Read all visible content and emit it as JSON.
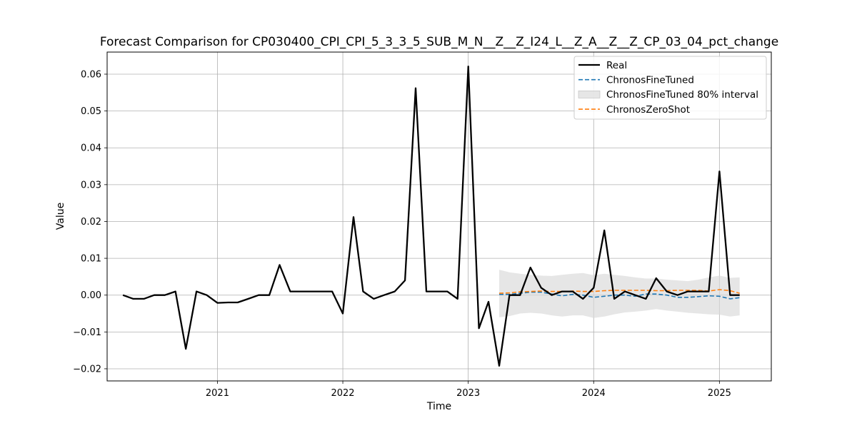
{
  "chart_data": {
    "type": "line",
    "title": "Forecast Comparison for CP030400_CPI_CPI_5_3_3_5_SUB_M_N__Z__Z_I24_L__Z_A__Z__Z_CP_03_04_pct_change",
    "xlabel": "Time",
    "ylabel": "Value",
    "xlim": [
      "2020-02-15",
      "2025-06-01"
    ],
    "ylim": [
      -0.0233,
      0.066
    ],
    "x_ticks": [
      "2021-01-01",
      "2022-01-01",
      "2023-01-01",
      "2024-01-01",
      "2025-01-01"
    ],
    "x_tick_labels": [
      "2021",
      "2022",
      "2023",
      "2024",
      "2025"
    ],
    "y_ticks": [
      -0.02,
      -0.01,
      0.0,
      0.01,
      0.02,
      0.03,
      0.04,
      0.05,
      0.06
    ],
    "y_tick_labels": [
      "−0.02",
      "−0.01",
      "0.00",
      "0.01",
      "0.02",
      "0.03",
      "0.04",
      "0.05",
      "0.06"
    ],
    "grid": true,
    "legend_position": "top-right",
    "series": [
      {
        "name": "Real",
        "style": "solid",
        "color": "#000000",
        "x": [
          "2020-04",
          "2020-05",
          "2020-06",
          "2020-07",
          "2020-08",
          "2020-09",
          "2020-10",
          "2020-11",
          "2020-12",
          "2021-01",
          "2021-02",
          "2021-03",
          "2021-04",
          "2021-05",
          "2021-06",
          "2021-07",
          "2021-08",
          "2021-09",
          "2021-10",
          "2021-11",
          "2021-12",
          "2022-01",
          "2022-02",
          "2022-03",
          "2022-04",
          "2022-05",
          "2022-06",
          "2022-07",
          "2022-08",
          "2022-09",
          "2022-10",
          "2022-11",
          "2022-12",
          "2023-01",
          "2023-02",
          "2023-03",
          "2023-04",
          "2023-05",
          "2023-06",
          "2023-07",
          "2023-08",
          "2023-09",
          "2023-10",
          "2023-11",
          "2023-12",
          "2024-01",
          "2024-02",
          "2024-03",
          "2024-04",
          "2024-05",
          "2024-06",
          "2024-07",
          "2024-08",
          "2024-09",
          "2024-10",
          "2024-11",
          "2024-12",
          "2025-01",
          "2025-02",
          "2025-03"
        ],
        "values": [
          0.0,
          -0.001,
          -0.001,
          0.0,
          0.0,
          0.001,
          -0.0146,
          0.001,
          0.0,
          -0.0021,
          -0.002,
          -0.002,
          -0.001,
          0.0,
          0.0,
          0.0082,
          0.001,
          0.001,
          0.001,
          0.001,
          0.001,
          -0.005,
          0.0212,
          0.001,
          -0.001,
          0.0,
          0.001,
          0.004,
          0.0562,
          0.001,
          0.001,
          0.001,
          -0.001,
          0.0621,
          -0.009,
          -0.0018,
          -0.0192,
          0.0,
          0.0,
          0.0075,
          0.002,
          0.0,
          0.001,
          0.001,
          -0.001,
          0.002,
          0.0176,
          -0.001,
          0.001,
          0.0,
          -0.001,
          0.0046,
          0.001,
          0.0,
          0.001,
          0.001,
          0.001,
          0.0336,
          0.0,
          0.0
        ]
      },
      {
        "name": "ChronosFineTuned",
        "style": "dashed",
        "color": "#1f77b4",
        "x": [
          "2023-04",
          "2023-05",
          "2023-06",
          "2023-07",
          "2023-08",
          "2023-09",
          "2023-10",
          "2023-11",
          "2023-12",
          "2024-01",
          "2024-02",
          "2024-03",
          "2024-04",
          "2024-05",
          "2024-06",
          "2024-07",
          "2024-08",
          "2024-09",
          "2024-10",
          "2024-11",
          "2024-12",
          "2025-01",
          "2025-02",
          "2025-03"
        ],
        "values": [
          0.0002,
          0.0002,
          0.0005,
          0.0008,
          0.0008,
          0.0003,
          -0.0002,
          0.0002,
          0.0,
          -0.0006,
          -0.0003,
          0.0,
          0.0,
          -0.0003,
          0.0003,
          0.0003,
          0.0,
          -0.0006,
          -0.0006,
          -0.0004,
          -0.0002,
          -0.0003,
          -0.001,
          -0.0007
        ]
      },
      {
        "name": "ChronosFineTuned 80% interval",
        "style": "band",
        "color": "#d9d9d9",
        "x": [
          "2023-04",
          "2023-05",
          "2023-06",
          "2023-07",
          "2023-08",
          "2023-09",
          "2023-10",
          "2023-11",
          "2023-12",
          "2024-01",
          "2024-02",
          "2024-03",
          "2024-04",
          "2024-05",
          "2024-06",
          "2024-07",
          "2024-08",
          "2024-09",
          "2024-10",
          "2024-11",
          "2024-12",
          "2025-01",
          "2025-02",
          "2025-03"
        ],
        "lower": [
          -0.006,
          -0.0057,
          -0.005,
          -0.0048,
          -0.005,
          -0.0055,
          -0.0058,
          -0.0055,
          -0.0055,
          -0.0062,
          -0.0058,
          -0.0052,
          -0.0047,
          -0.0045,
          -0.0042,
          -0.0038,
          -0.0042,
          -0.0045,
          -0.0048,
          -0.005,
          -0.0052,
          -0.0053,
          -0.0058,
          -0.0055
        ],
        "upper": [
          0.0069,
          0.0062,
          0.0058,
          0.0055,
          0.0053,
          0.0052,
          0.0055,
          0.0058,
          0.006,
          0.0054,
          0.0058,
          0.0055,
          0.0052,
          0.0048,
          0.0045,
          0.0045,
          0.0042,
          0.004,
          0.0038,
          0.0042,
          0.0048,
          0.0053,
          0.0047,
          0.0048
        ]
      },
      {
        "name": "ChronosZeroShot",
        "style": "dashed",
        "color": "#ff7f0e",
        "x": [
          "2023-04",
          "2023-05",
          "2023-06",
          "2023-07",
          "2023-08",
          "2023-09",
          "2023-10",
          "2023-11",
          "2023-12",
          "2024-01",
          "2024-02",
          "2024-03",
          "2024-04",
          "2024-05",
          "2024-06",
          "2024-07",
          "2024-08",
          "2024-09",
          "2024-10",
          "2024-11",
          "2024-12",
          "2025-01",
          "2025-02",
          "2025-03"
        ],
        "values": [
          0.0005,
          0.0006,
          0.0009,
          0.001,
          0.0011,
          0.001,
          0.001,
          0.0011,
          0.001,
          0.001,
          0.0012,
          0.0013,
          0.0013,
          0.0013,
          0.0013,
          0.0012,
          0.0012,
          0.0013,
          0.0013,
          0.0013,
          0.0011,
          0.0015,
          0.0012,
          0.0005
        ]
      }
    ]
  }
}
